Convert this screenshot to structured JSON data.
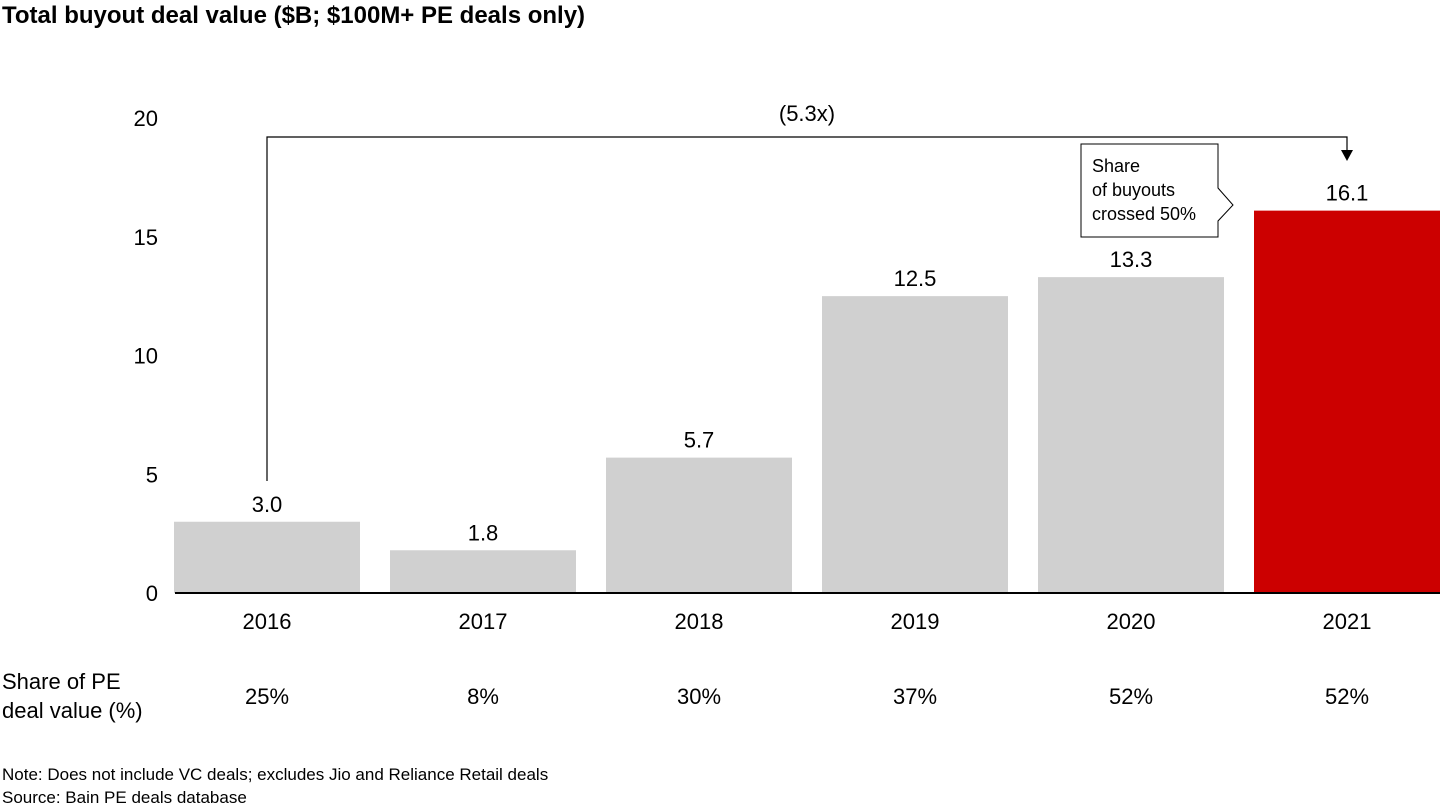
{
  "title": "Total buyout deal value ($B; $100M+ PE deals only)",
  "chart_data": {
    "type": "bar",
    "categories": [
      "2016",
      "2017",
      "2018",
      "2019",
      "2020",
      "2021"
    ],
    "values": [
      3.0,
      1.8,
      5.7,
      12.5,
      13.3,
      16.1
    ],
    "value_labels": [
      "3.0",
      "1.8",
      "5.7",
      "12.5",
      "13.3",
      "16.1"
    ],
    "ylim": [
      0,
      20
    ],
    "yticks": [
      "0",
      "5",
      "10",
      "15",
      "20"
    ],
    "grid": false,
    "colors": {
      "default": "#d0d0d0",
      "highlight": "#cc0000",
      "highlight_index": 5
    },
    "growth_annotation": "(5.3x)",
    "callout": {
      "lines": [
        "Share",
        "of buyouts",
        "crossed 50%"
      ]
    },
    "share_row": {
      "label_lines": [
        "Share of PE",
        "deal value (%)"
      ],
      "values": [
        "25%",
        "8%",
        "30%",
        "37%",
        "52%",
        "52%"
      ]
    }
  },
  "notes": [
    "Note: Does not include VC deals; excludes Jio and Reliance Retail deals",
    "Source: Bain PE deals database"
  ]
}
